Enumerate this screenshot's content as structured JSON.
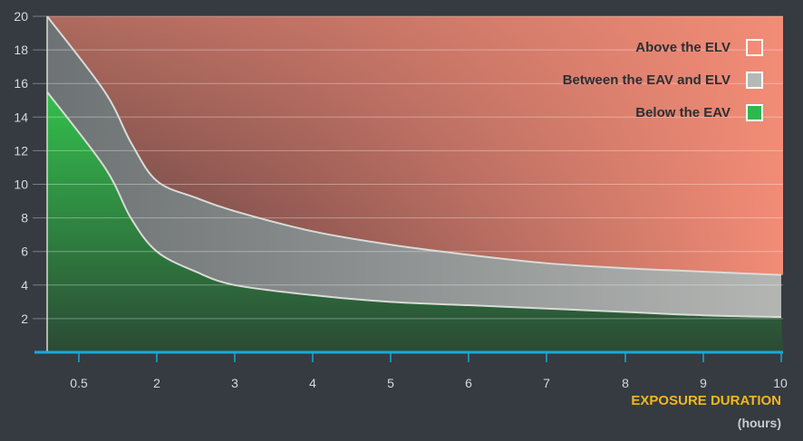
{
  "colors": {
    "background": "#353b41",
    "above_elv": "#f28c76",
    "between": "#b5b9b6",
    "below_eav": "#2fb84a",
    "axis": "#1ba9d4",
    "xlabel": "#f3b61f"
  },
  "chart_data": {
    "type": "area",
    "title": "",
    "xlabel": "EXPOSURE DURATION",
    "xunit": "(hours)",
    "ylabel": "",
    "x_ticks": [
      "0.5",
      "2",
      "3",
      "4",
      "5",
      "6",
      "7",
      "8",
      "9",
      "10"
    ],
    "x_tick_values": [
      0.5,
      2,
      3,
      4,
      5,
      6,
      7,
      8,
      9,
      10
    ],
    "y_ticks": [
      2,
      4,
      6,
      8,
      10,
      12,
      14,
      16,
      18,
      20
    ],
    "ylim": [
      0,
      20
    ],
    "grid": true,
    "legend_position": "top-right",
    "legend": [
      {
        "label": "Above the ELV",
        "color": "#f28c76"
      },
      {
        "label": "Between the EAV and ELV",
        "color": "#b5b9b6"
      },
      {
        "label": "Below the EAV",
        "color": "#2fb84a"
      }
    ],
    "series": [
      {
        "name": "ELV",
        "x": [
          0.5,
          1,
          1.5,
          2,
          2.5,
          3,
          4,
          5,
          6,
          7,
          8,
          9,
          10
        ],
        "values": [
          20,
          15.5,
          12.5,
          10.2,
          9.2,
          8.4,
          7.2,
          6.4,
          5.8,
          5.3,
          5.0,
          4.8,
          4.6
        ]
      },
      {
        "name": "EAV",
        "x": [
          0.5,
          1,
          1.5,
          2,
          2.5,
          3,
          4,
          5,
          6,
          7,
          8,
          9,
          10
        ],
        "values": [
          15.5,
          11,
          8,
          6,
          4.8,
          4,
          3.4,
          3.0,
          2.8,
          2.6,
          2.4,
          2.2,
          2.1
        ]
      }
    ]
  }
}
